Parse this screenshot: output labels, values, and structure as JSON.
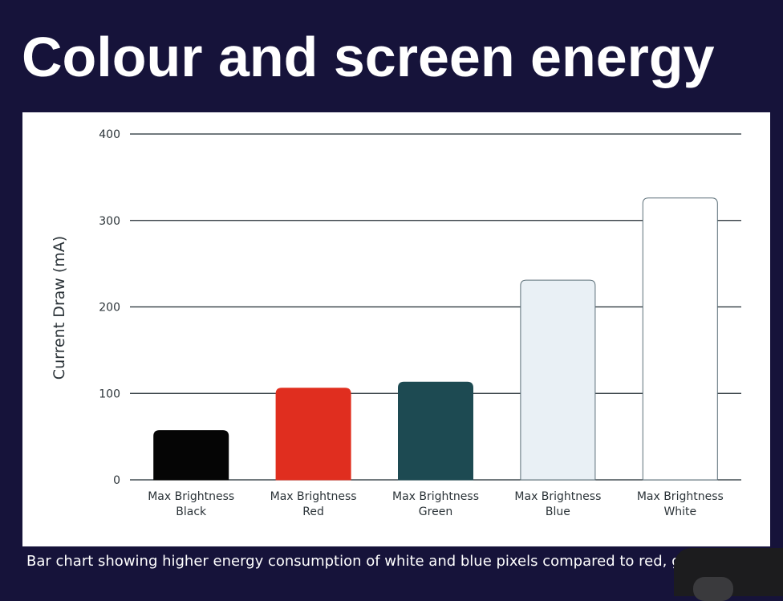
{
  "slide": {
    "title": "Colour and screen energy",
    "caption": "Bar chart showing higher energy consumption of white and blue pixels compared to red, gre"
  },
  "chart_data": {
    "type": "bar",
    "title": "",
    "xlabel": "",
    "ylabel": "Current Draw (mA)",
    "ylim": [
      0,
      400
    ],
    "yticks": [
      0,
      100,
      200,
      300,
      400
    ],
    "grid": "horizontal",
    "legend": "none",
    "categories": [
      [
        "Max Brightness",
        "Black"
      ],
      [
        "Max Brightness",
        "Red"
      ],
      [
        "Max Brightness",
        "Green"
      ],
      [
        "Max Brightness",
        "Blue"
      ],
      [
        "Max Brightness",
        "White"
      ]
    ],
    "values": [
      57,
      106,
      113,
      231,
      326
    ],
    "bar_colors": [
      "#050505",
      "#e02e1f",
      "#1d4a52",
      "#e9f0f5",
      "#ffffff"
    ],
    "bar_outline_colors": [
      "#050505",
      "#e02e1f",
      "#1d4a52",
      "#5b6f78",
      "#5b6f78"
    ]
  },
  "colors": {
    "background": "#16133a",
    "panel": "#ffffff",
    "gridline": "#1f2a30",
    "axis_text": "#2b3338"
  }
}
